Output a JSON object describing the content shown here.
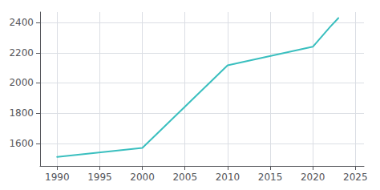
{
  "chart_data": {
    "type": "line",
    "x": [
      1990,
      2000,
      2010,
      2020,
      2022,
      2023
    ],
    "values": [
      1510,
      1570,
      2117,
      2240,
      2370,
      2430
    ],
    "color": "#3abfbf",
    "xlim": [
      1988,
      2026
    ],
    "ylim": [
      1450,
      2470
    ],
    "xticks": [
      1990,
      1995,
      2000,
      2005,
      2010,
      2015,
      2020,
      2025
    ],
    "yticks": [
      1600,
      1800,
      2000,
      2200,
      2400
    ],
    "grid": true
  }
}
